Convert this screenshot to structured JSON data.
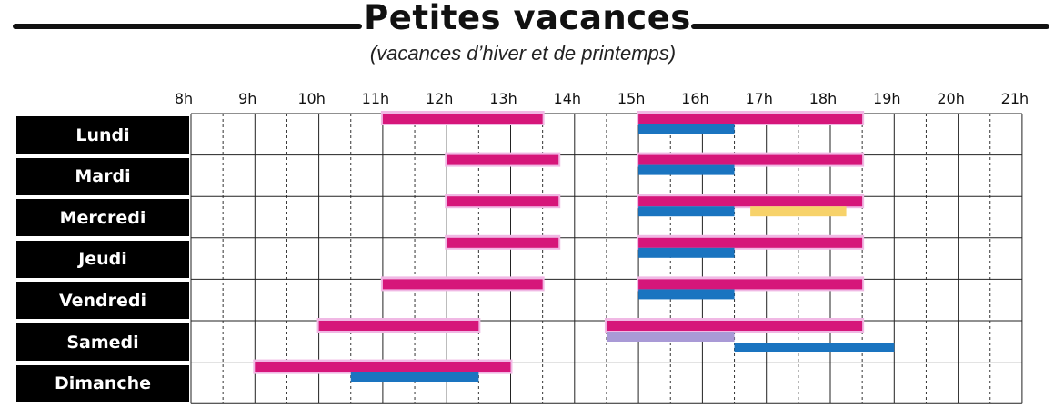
{
  "title": "Petites vacances",
  "subtitle": "(vacances d’hiver et de printemps)",
  "chart_data": {
    "type": "timeline",
    "hour_range": [
      8,
      21
    ],
    "hour_labels": [
      "8h",
      "9h",
      "10h",
      "11h",
      "12h",
      "13h",
      "14h",
      "15h",
      "16h",
      "17h",
      "18h",
      "19h",
      "20h",
      "21h"
    ],
    "days": [
      "Lundi",
      "Mardi",
      "Mercredi",
      "Jeudi",
      "Vendredi",
      "Samedi",
      "Dimanche"
    ],
    "colors": {
      "magenta": "#d6167a",
      "blue": "#1a74c0",
      "yellow": "#f7d26a",
      "lavender": "#a99ad6",
      "halo": "#f0b8e4"
    },
    "schedule": [
      {
        "day": "Lundi",
        "bars": [
          {
            "start": 11,
            "end": 13.5,
            "color": "magenta",
            "row": "top"
          },
          {
            "start": 15,
            "end": 18.5,
            "color": "magenta",
            "row": "top"
          },
          {
            "start": 15,
            "end": 16.5,
            "color": "blue",
            "row": "bottom"
          }
        ]
      },
      {
        "day": "Mardi",
        "bars": [
          {
            "start": 12,
            "end": 13.75,
            "color": "magenta",
            "row": "top"
          },
          {
            "start": 15,
            "end": 18.5,
            "color": "magenta",
            "row": "top"
          },
          {
            "start": 15,
            "end": 16.5,
            "color": "blue",
            "row": "bottom"
          }
        ]
      },
      {
        "day": "Mercredi",
        "bars": [
          {
            "start": 12,
            "end": 13.75,
            "color": "magenta",
            "row": "top"
          },
          {
            "start": 15,
            "end": 18.5,
            "color": "magenta",
            "row": "top"
          },
          {
            "start": 15,
            "end": 16.5,
            "color": "blue",
            "row": "bottom"
          },
          {
            "start": 16.75,
            "end": 18.25,
            "color": "yellow",
            "row": "bottom"
          }
        ]
      },
      {
        "day": "Jeudi",
        "bars": [
          {
            "start": 12,
            "end": 13.75,
            "color": "magenta",
            "row": "top"
          },
          {
            "start": 15,
            "end": 18.5,
            "color": "magenta",
            "row": "top"
          },
          {
            "start": 15,
            "end": 16.5,
            "color": "blue",
            "row": "bottom"
          }
        ]
      },
      {
        "day": "Vendredi",
        "bars": [
          {
            "start": 11,
            "end": 13.5,
            "color": "magenta",
            "row": "top"
          },
          {
            "start": 15,
            "end": 18.5,
            "color": "magenta",
            "row": "top"
          },
          {
            "start": 15,
            "end": 16.5,
            "color": "blue",
            "row": "bottom"
          }
        ]
      },
      {
        "day": "Samedi",
        "bars": [
          {
            "start": 10,
            "end": 12.5,
            "color": "magenta",
            "row": "top"
          },
          {
            "start": 14.5,
            "end": 18.5,
            "color": "magenta",
            "row": "top"
          },
          {
            "start": 14.5,
            "end": 16.5,
            "color": "lavender",
            "row": "mid"
          },
          {
            "start": 16.5,
            "end": 19,
            "color": "blue",
            "row": "bottom"
          }
        ]
      },
      {
        "day": "Dimanche",
        "bars": [
          {
            "start": 9,
            "end": 13,
            "color": "magenta",
            "row": "top"
          },
          {
            "start": 10.5,
            "end": 12.5,
            "color": "blue",
            "row": "bottom"
          }
        ]
      }
    ]
  }
}
